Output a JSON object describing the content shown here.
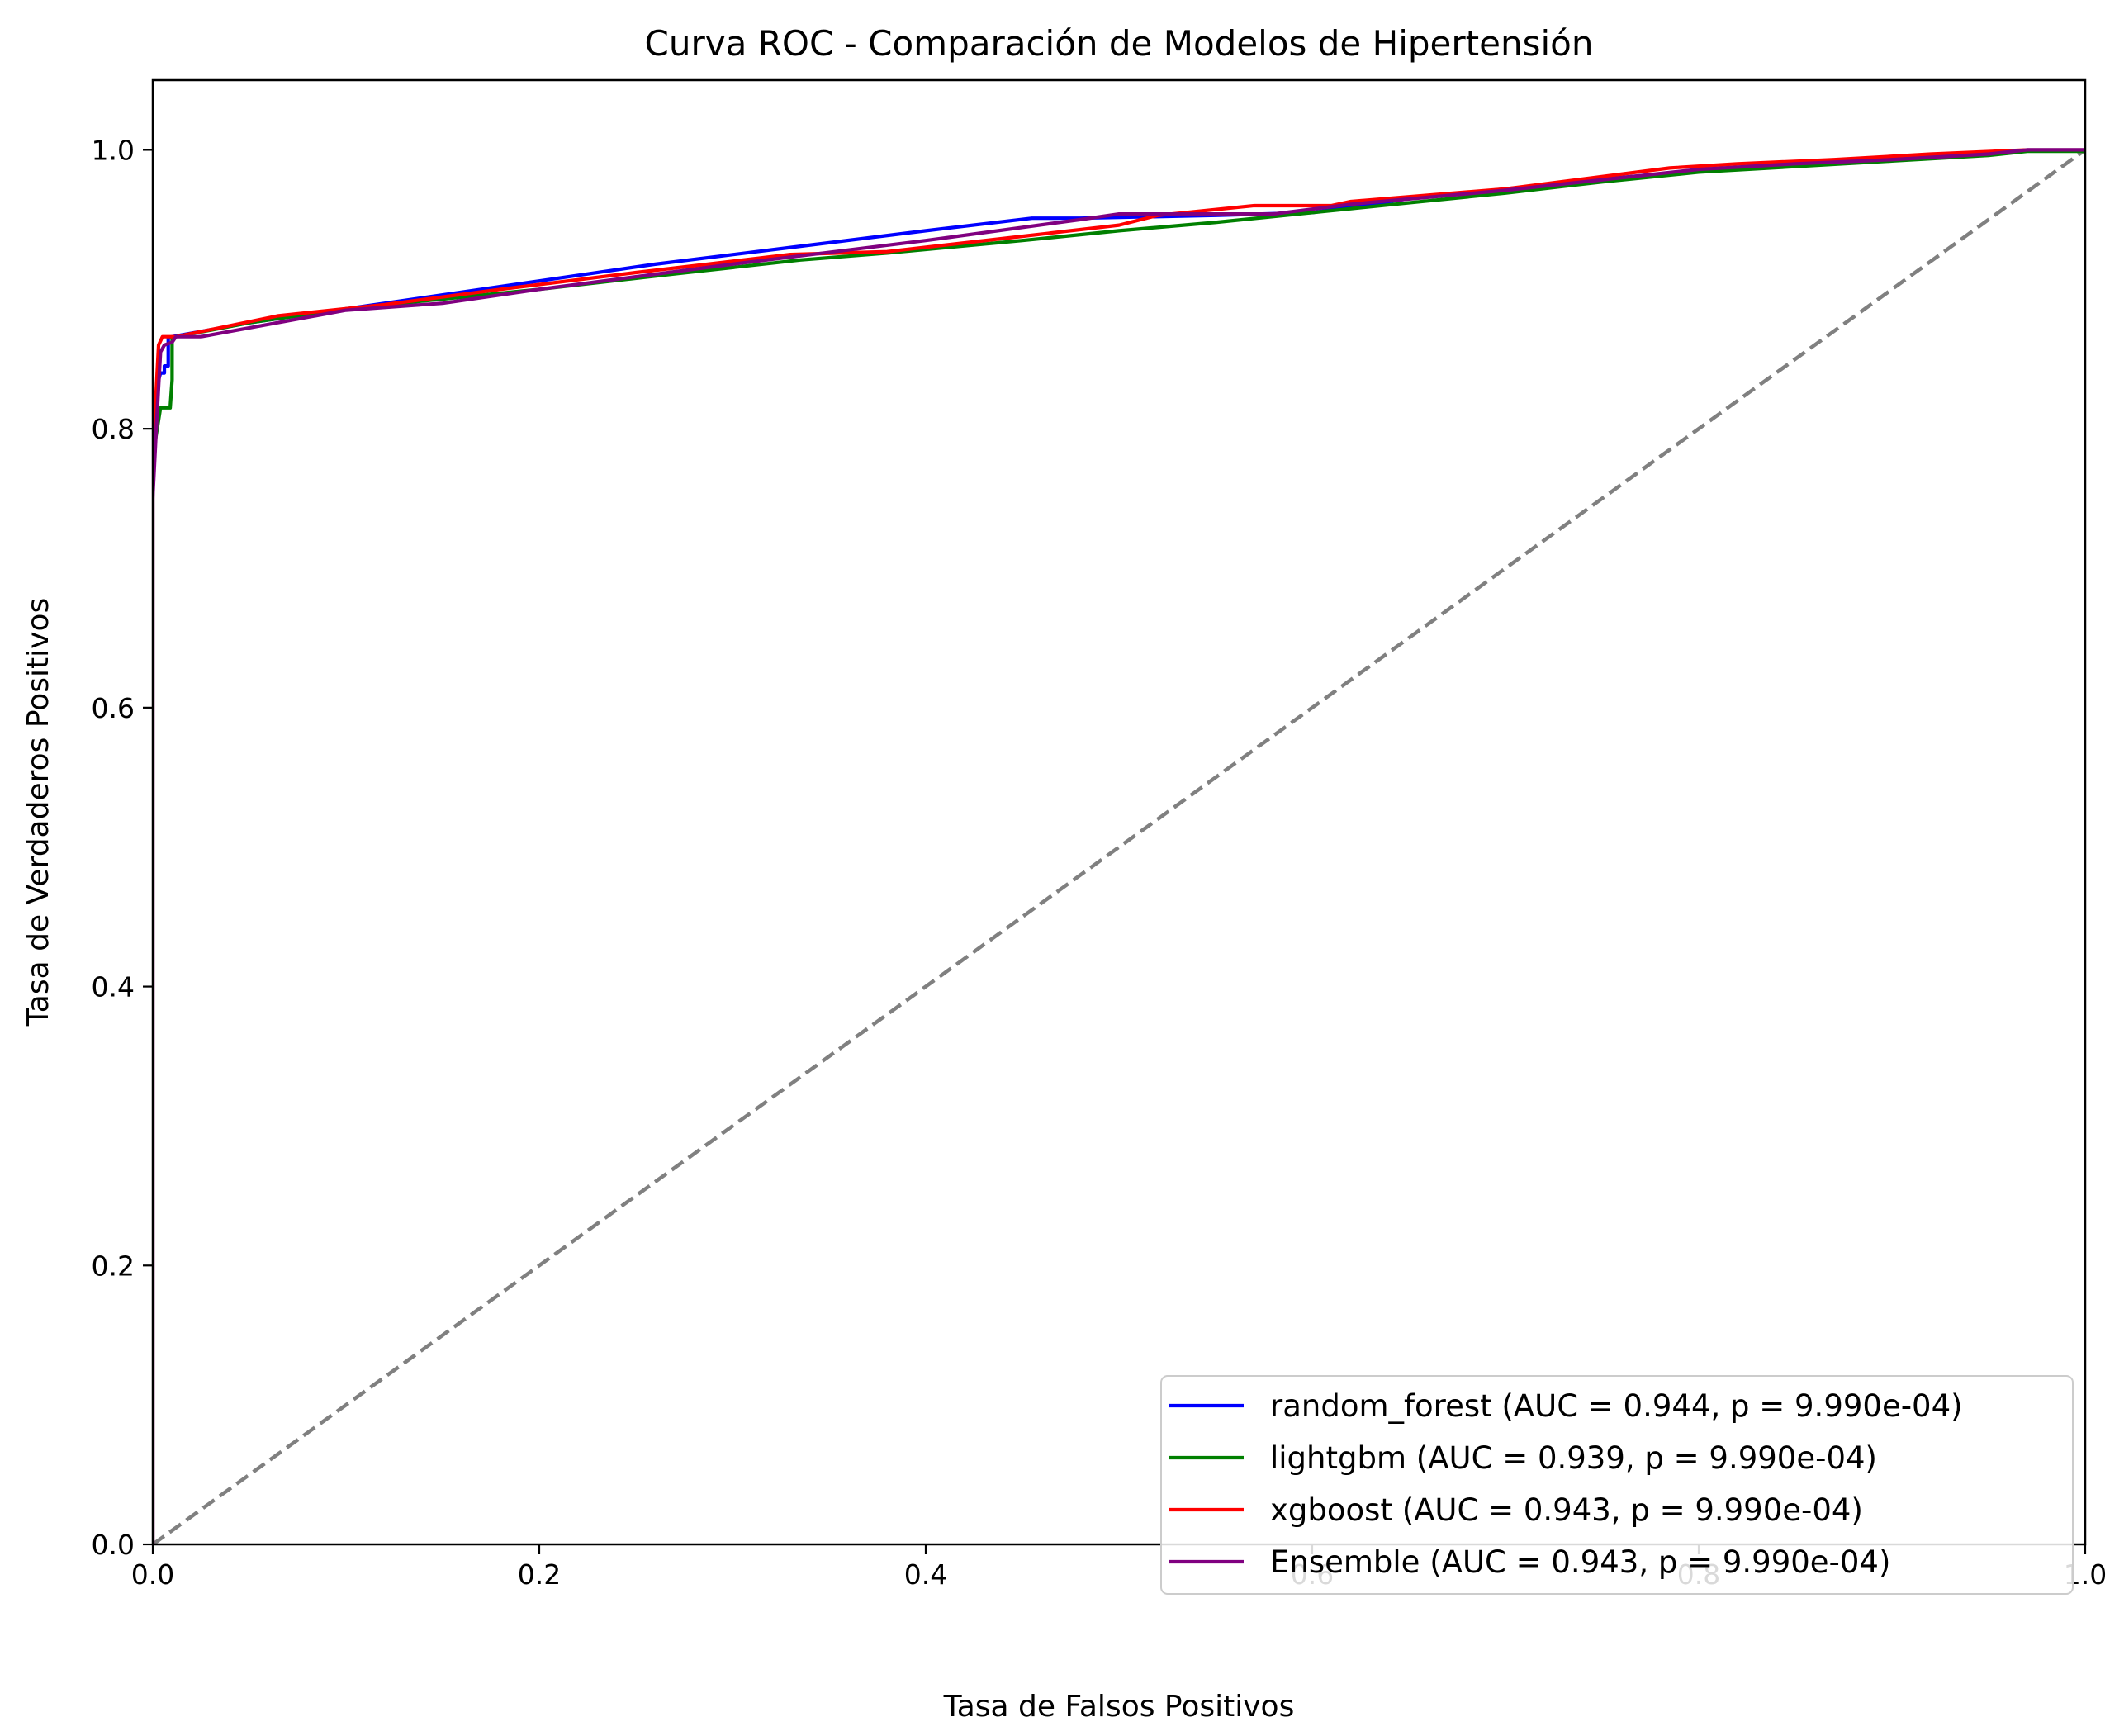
{
  "chart_data": {
    "type": "line",
    "title": "Curva ROC - Comparación de Modelos de Hipertensión",
    "xlabel": "Tasa de Falsos Positivos",
    "ylabel": "Tasa de Verdaderos Positivos",
    "xlim": [
      0.0,
      1.0
    ],
    "ylim": [
      0.0,
      1.05
    ],
    "xticks": [
      "0.0",
      "0.2",
      "0.4",
      "0.6",
      "0.8",
      "1.0"
    ],
    "yticks": [
      "0.0",
      "0.2",
      "0.4",
      "0.6",
      "0.8",
      "1.0"
    ],
    "grid": false,
    "legend": "bottom-right",
    "series": [
      {
        "name": "random_forest (AUC = 0.944, p = 9.990e-04)",
        "color": "#0000ff",
        "x": [
          0.0,
          0.0,
          0.002,
          0.004,
          0.006,
          0.006,
          0.008,
          0.008,
          0.01,
          0.05,
          0.1,
          0.15,
          0.2,
          0.26,
          0.33,
          0.4,
          0.455,
          0.48,
          0.55,
          0.6,
          0.65,
          0.7,
          0.75,
          0.8,
          0.85,
          0.9,
          0.95,
          0.97,
          1.0
        ],
        "y": [
          0.0,
          0.76,
          0.83,
          0.84,
          0.84,
          0.845,
          0.845,
          0.865,
          0.866,
          0.876,
          0.886,
          0.896,
          0.906,
          0.918,
          0.93,
          0.942,
          0.951,
          0.951,
          0.953,
          0.955,
          0.965,
          0.972,
          0.979,
          0.985,
          0.99,
          0.994,
          0.997,
          1.0,
          1.0
        ]
      },
      {
        "name": "lightgbm (AUC = 0.939, p = 9.990e-04)",
        "color": "#008000",
        "x": [
          0.0,
          0.0,
          0.004,
          0.005,
          0.009,
          0.01,
          0.01,
          0.012,
          0.05,
          0.1,
          0.15,
          0.2,
          0.27,
          0.335,
          0.38,
          0.45,
          0.5,
          0.55,
          0.6,
          0.65,
          0.7,
          0.75,
          0.8,
          0.85,
          0.9,
          0.95,
          0.97,
          1.0
        ],
        "y": [
          0.0,
          0.78,
          0.815,
          0.815,
          0.815,
          0.835,
          0.865,
          0.866,
          0.876,
          0.886,
          0.893,
          0.9,
          0.911,
          0.921,
          0.926,
          0.935,
          0.942,
          0.948,
          0.955,
          0.962,
          0.969,
          0.977,
          0.984,
          0.988,
          0.992,
          0.996,
          0.999,
          0.999
        ]
      },
      {
        "name": "xgboost (AUC = 0.943, p = 9.990e-04)",
        "color": "#ff0000",
        "x": [
          0.0,
          0.0,
          0.003,
          0.005,
          0.012,
          0.065,
          0.12,
          0.18,
          0.25,
          0.33,
          0.38,
          0.45,
          0.5,
          0.52,
          0.57,
          0.61,
          0.62,
          0.7,
          0.785,
          0.82,
          0.87,
          0.92,
          0.97,
          1.0
        ],
        "y": [
          0.0,
          0.78,
          0.86,
          0.866,
          0.866,
          0.881,
          0.889,
          0.9,
          0.912,
          0.925,
          0.927,
          0.938,
          0.946,
          0.953,
          0.96,
          0.96,
          0.963,
          0.972,
          0.987,
          0.99,
          0.993,
          0.997,
          1.0,
          1.0
        ]
      },
      {
        "name": "Ensemble (AUC = 0.943, p = 9.990e-04)",
        "color": "#800080",
        "x": [
          0.0,
          0.0,
          0.002,
          0.004,
          0.006,
          0.01,
          0.012,
          0.025,
          0.1,
          0.15,
          0.2,
          0.3,
          0.4,
          0.48,
          0.5,
          0.58,
          0.62,
          0.7,
          0.8,
          0.85,
          0.9,
          0.95,
          0.97,
          1.0
        ],
        "y": [
          0.0,
          0.75,
          0.805,
          0.855,
          0.86,
          0.862,
          0.866,
          0.866,
          0.885,
          0.89,
          0.9,
          0.918,
          0.935,
          0.95,
          0.954,
          0.954,
          0.961,
          0.971,
          0.986,
          0.99,
          0.993,
          0.997,
          1.0,
          1.0
        ]
      }
    ],
    "reference_line": {
      "x": [
        0.0,
        1.0
      ],
      "y": [
        0.0,
        1.0
      ],
      "color": "#808080",
      "style": "dashed"
    }
  }
}
